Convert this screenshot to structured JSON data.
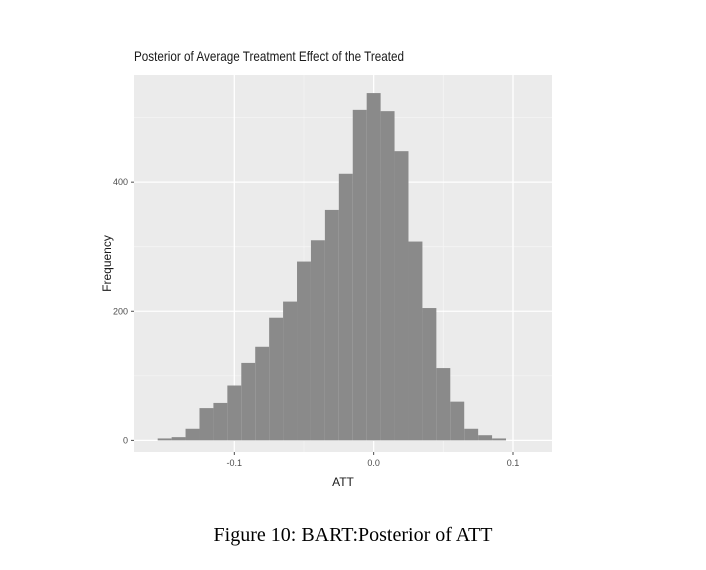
{
  "chart_data": {
    "type": "bar",
    "title": "Posterior of Average Treatment Effect of the Treated",
    "xlabel": "ATT",
    "ylabel": "Frequency",
    "xlim": [
      -0.172,
      0.128
    ],
    "ylim": [
      -18,
      566
    ],
    "x_ticks": [
      -0.1,
      0.0,
      0.1
    ],
    "x_tick_labels": [
      "-0.1",
      "0.0",
      "0.1"
    ],
    "y_ticks": [
      0,
      200,
      400
    ],
    "y_tick_labels": [
      "0",
      "200",
      "400"
    ],
    "grid": true,
    "bin_width": 0.01,
    "bins": [
      {
        "x": -0.15,
        "count": 3
      },
      {
        "x": -0.14,
        "count": 5
      },
      {
        "x": -0.13,
        "count": 18
      },
      {
        "x": -0.12,
        "count": 50
      },
      {
        "x": -0.11,
        "count": 58
      },
      {
        "x": -0.1,
        "count": 85
      },
      {
        "x": -0.09,
        "count": 120
      },
      {
        "x": -0.08,
        "count": 145
      },
      {
        "x": -0.07,
        "count": 190
      },
      {
        "x": -0.06,
        "count": 215
      },
      {
        "x": -0.05,
        "count": 277
      },
      {
        "x": -0.04,
        "count": 310
      },
      {
        "x": -0.03,
        "count": 357
      },
      {
        "x": -0.02,
        "count": 413
      },
      {
        "x": -0.01,
        "count": 512
      },
      {
        "x": 0.0,
        "count": 538
      },
      {
        "x": 0.01,
        "count": 510
      },
      {
        "x": 0.02,
        "count": 448
      },
      {
        "x": 0.03,
        "count": 308
      },
      {
        "x": 0.04,
        "count": 205
      },
      {
        "x": 0.05,
        "count": 112
      },
      {
        "x": 0.06,
        "count": 60
      },
      {
        "x": 0.07,
        "count": 18
      },
      {
        "x": 0.08,
        "count": 8
      },
      {
        "x": 0.09,
        "count": 3
      }
    ],
    "colors": {
      "panel": "#ebebeb",
      "grid_major": "#ffffff",
      "grid_minor": "#f5f5f5",
      "bar": "#8a8a8a",
      "text": "#1a1a1a",
      "tick": "#4d4d4d"
    }
  },
  "figure": {
    "caption": "Figure 10: BART:Posterior of ATT"
  }
}
